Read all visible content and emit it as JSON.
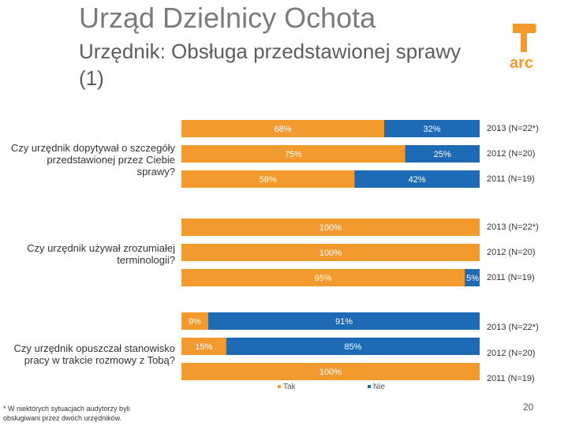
{
  "header": {
    "title": "Urząd Dzielnicy Ochota",
    "subtitle": "Urzędnik: Obsługa przedstawionej sprawy (1)",
    "logo_text": "arc"
  },
  "colors": {
    "tak": "#f39a2e",
    "nie": "#1e6ab4"
  },
  "chart_data": {
    "type": "bar",
    "orientation": "horizontal",
    "stacked": true,
    "normalized_percent": true,
    "groups": [
      {
        "question": "Czy urzędnik dopytywał o szczegóły przedstawionej przez Ciebie sprawy?",
        "rows": [
          {
            "year_label": "2013 (N=22*)",
            "tak": 68,
            "nie": 32,
            "tak_label": "68%",
            "nie_label": "32%"
          },
          {
            "year_label": "2012 (N=20)",
            "tak": 75,
            "nie": 25,
            "tak_label": "75%",
            "nie_label": "25%"
          },
          {
            "year_label": "2011 (N=19)",
            "tak": 58,
            "nie": 42,
            "tak_label": "58%",
            "nie_label": "42%"
          }
        ]
      },
      {
        "question": "Czy urzędnik używał zrozumiałej terminologii?",
        "rows": [
          {
            "year_label": "2013 (N=22*)",
            "tak": 100,
            "nie": 0,
            "tak_label": "100%",
            "nie_label": ""
          },
          {
            "year_label": "2012 (N=20)",
            "tak": 100,
            "nie": 0,
            "tak_label": "100%",
            "nie_label": ""
          },
          {
            "year_label": "2011 (N=19)",
            "tak": 95,
            "nie": 5,
            "tak_label": "95%",
            "nie_label": "5%"
          }
        ]
      },
      {
        "question": "Czy urzędnik opuszczał stanowisko pracy w trakcie rozmowy z Tobą?",
        "rows": [
          {
            "year_label": "2013 (N=22*)",
            "tak": 9,
            "nie": 91,
            "tak_label": "9%",
            "nie_label": "91%"
          },
          {
            "year_label": "2012 (N=20)",
            "tak": 15,
            "nie": 85,
            "tak_label": "15%",
            "nie_label": "85%"
          },
          {
            "year_label": "2011 (N=19)",
            "tak": 100,
            "nie": 0,
            "tak_label": "100%",
            "nie_label": ""
          }
        ]
      }
    ],
    "legend": [
      "Tak",
      "Nie"
    ]
  },
  "footnote": "* W niektórych sytuacjach audytorzy byli obsługiwani przez dwóch urzędników.",
  "page_number": "20"
}
